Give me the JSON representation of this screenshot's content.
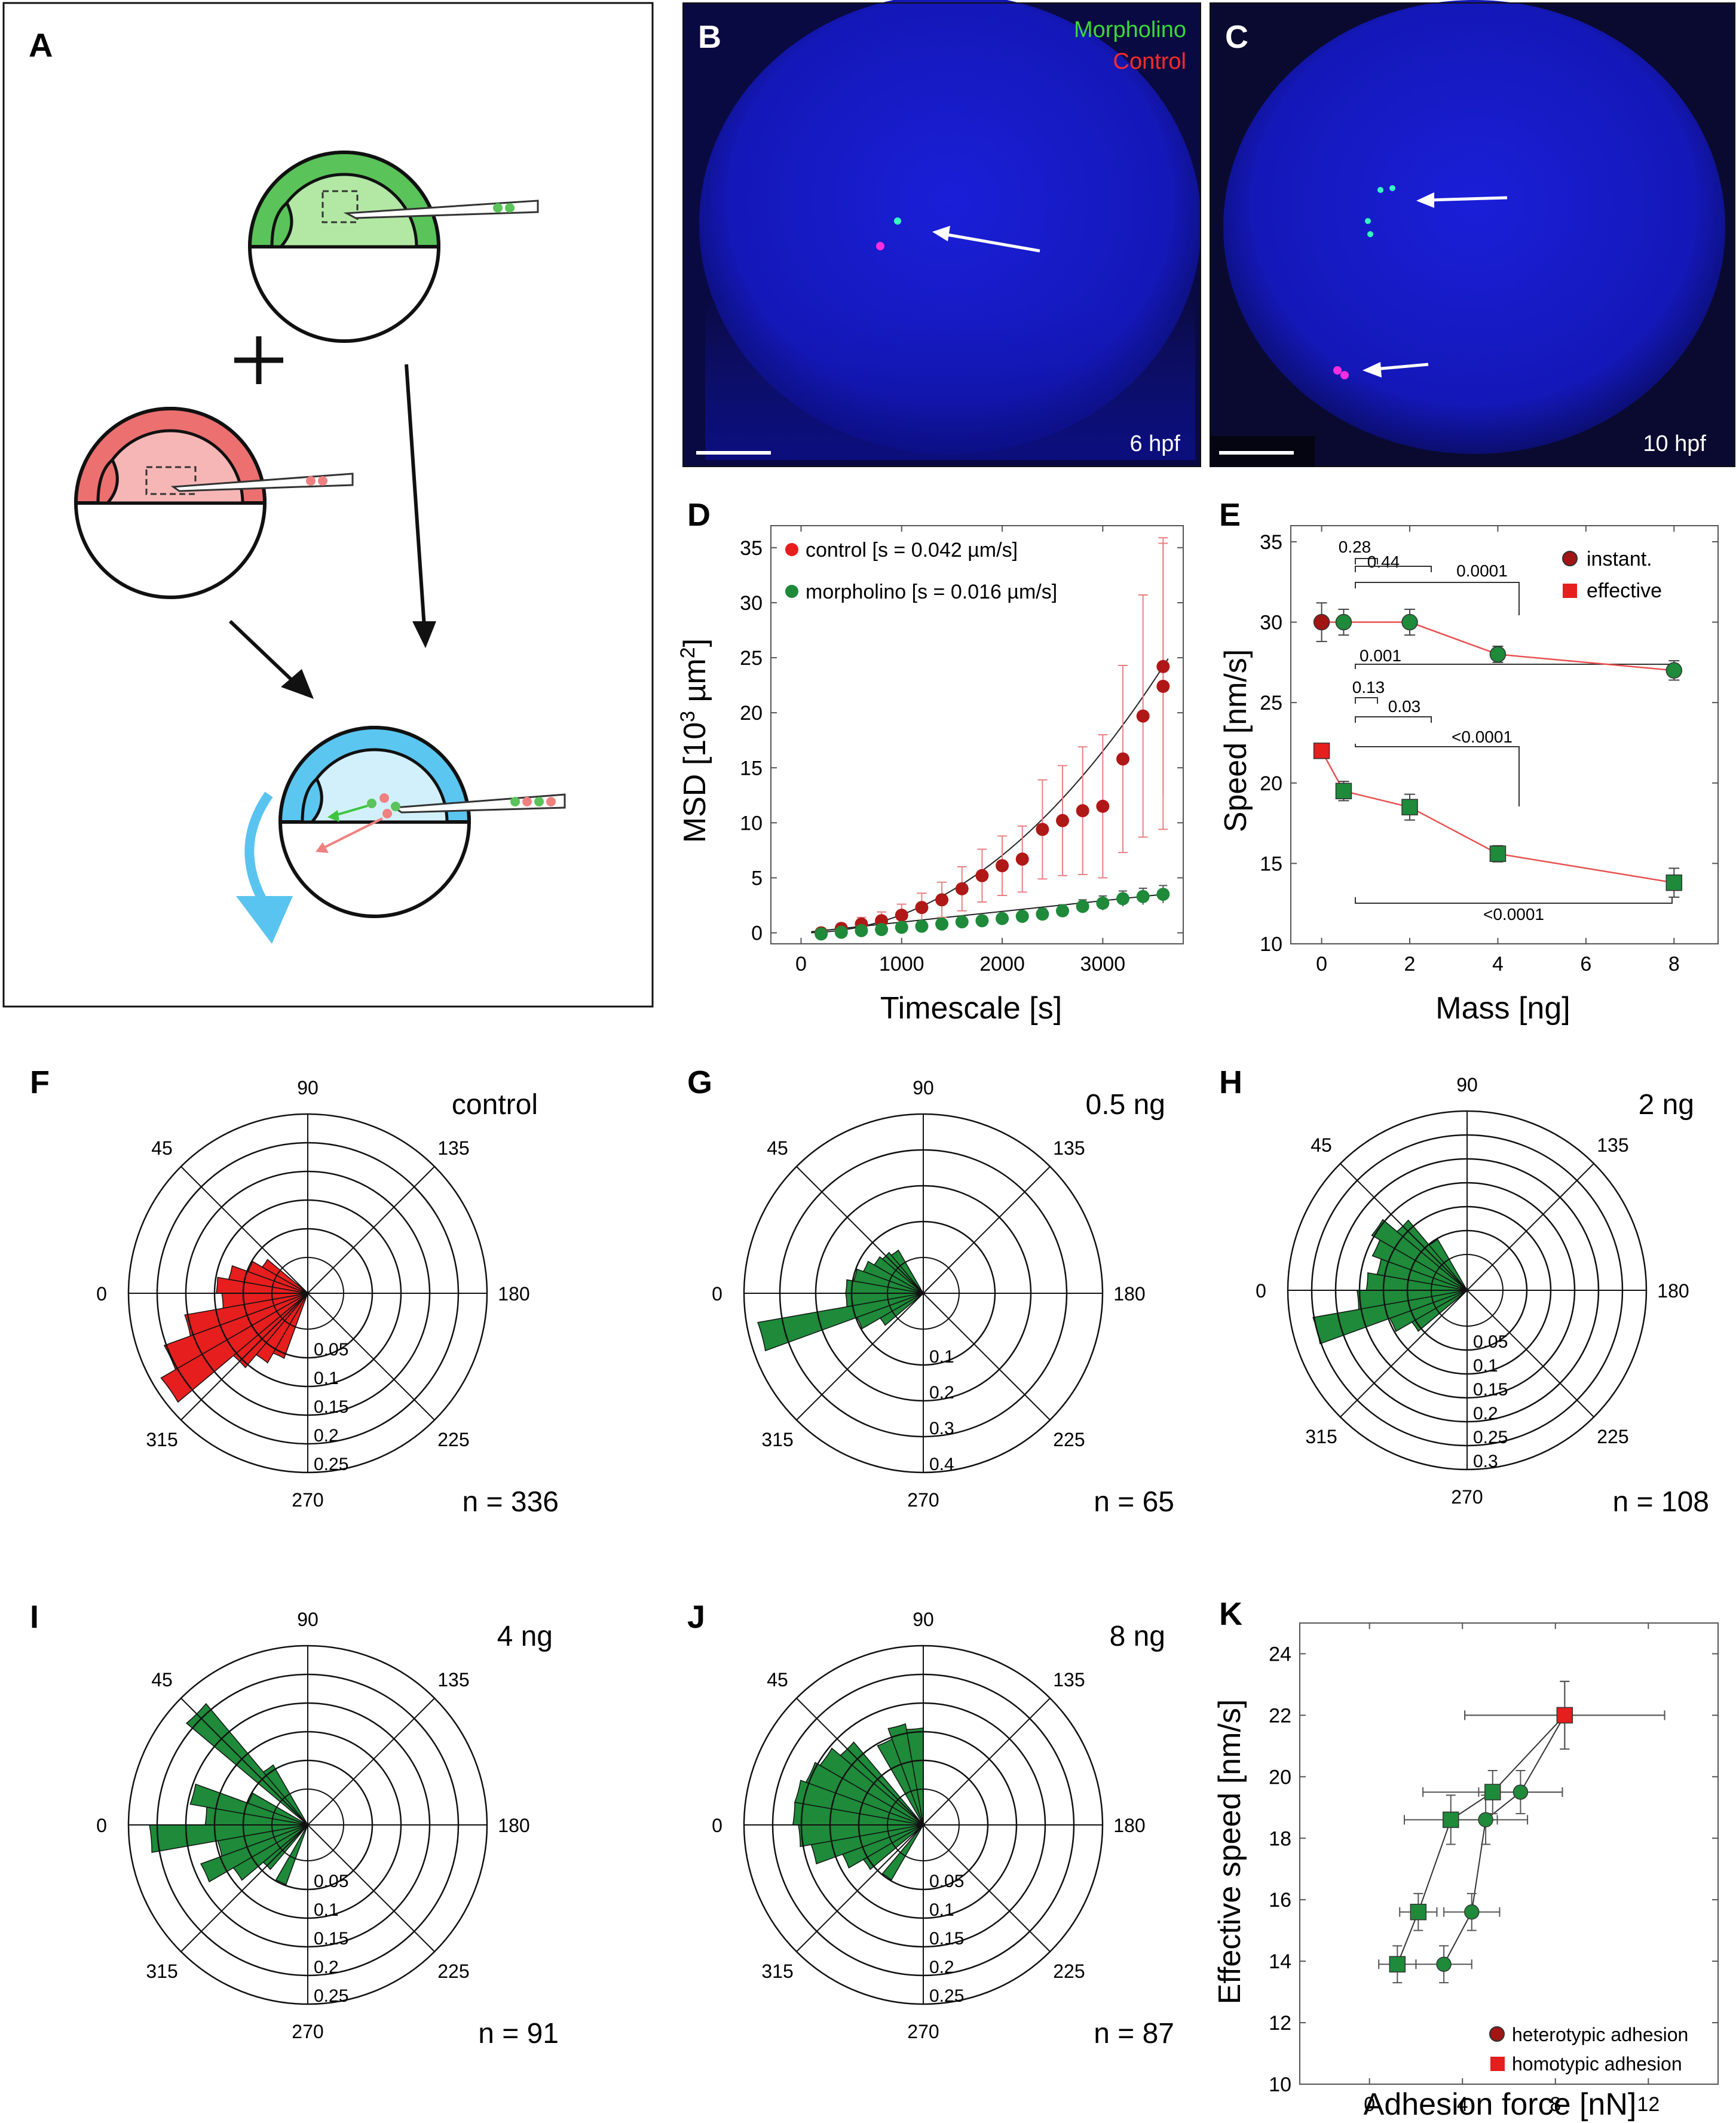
{
  "panel_letters": [
    "A",
    "B",
    "C",
    "D",
    "E",
    "F",
    "G",
    "H",
    "I",
    "J",
    "K"
  ],
  "colors": {
    "green": "#1e8a3a",
    "green_fill": "#b2e8a4",
    "red": "#e61e1e",
    "red_dark": "#a11515",
    "pink": "#f4a9a9",
    "blue_light": "#cfeefb",
    "blue": "#59c4ef",
    "micro_bg": "#0a0a42"
  },
  "panel_A": {
    "title": "A",
    "icons": [
      "green-embryo-icon",
      "red-embryo-icon",
      "mixed-embryo-icon",
      "plus-icon",
      "arrow-icon"
    ]
  },
  "panel_B": {
    "title": "B",
    "legend_morpholino": "Morpholino",
    "legend_control": "Control",
    "timepoint": "6 hpf",
    "legend_colors": {
      "morpholino": "#39d939",
      "control": "#ff2a2a"
    }
  },
  "panel_C": {
    "title": "C",
    "timepoint": "10 hpf"
  },
  "chart_data": [
    {
      "id": "D",
      "type": "scatter",
      "title": "",
      "xlabel": "Timescale [s]",
      "ylabel_main": "MSD [10",
      "ylabel_sup": "3",
      "ylabel_unit": " µm",
      "ylabel_sup2": "2",
      "ylabel_end": "]",
      "xlim": [
        -300,
        3800
      ],
      "ylim": [
        -1,
        37
      ],
      "xticks": [
        0,
        1000,
        2000,
        3000
      ],
      "yticks": [
        0,
        5,
        10,
        15,
        20,
        25,
        30,
        35
      ],
      "legend_position": "top-left",
      "series": [
        {
          "name": "control [s = 0.042 µm/s]",
          "color": "#b01818",
          "legend_color": "#e61e1e",
          "x": [
            200,
            400,
            600,
            800,
            1000,
            1200,
            1400,
            1600,
            1800,
            2000,
            2200,
            2400,
            2600,
            2800,
            3000,
            3200,
            3400,
            3600
          ],
          "y": [
            0,
            0.4,
            0.8,
            1.1,
            1.6,
            2.3,
            3.0,
            4.0,
            5.2,
            6.1,
            6.7,
            9.4,
            10.2,
            11.1,
            11.5,
            15.8,
            19.7,
            22.4
          ],
          "err": [
            0.3,
            0.4,
            0.6,
            0.8,
            1.0,
            1.3,
            1.6,
            2.0,
            2.4,
            2.7,
            3.0,
            4.5,
            5.0,
            5.8,
            6.5,
            8.5,
            11,
            13
          ]
        },
        {
          "name": "morpholino [s = 0.016 µm/s]",
          "color": "#1e8a3a",
          "legend_color": "#1e8a3a",
          "x": [
            200,
            400,
            600,
            800,
            1000,
            1200,
            1400,
            1600,
            1800,
            2000,
            2200,
            2400,
            2600,
            2800,
            3000,
            3200,
            3400,
            3600
          ],
          "y": [
            -0.1,
            0.05,
            0.2,
            0.3,
            0.5,
            0.6,
            0.8,
            1.0,
            1.1,
            1.3,
            1.5,
            1.7,
            2.0,
            2.4,
            2.7,
            3.1,
            3.3,
            3.5
          ],
          "err": [
            0.1,
            0.1,
            0.15,
            0.2,
            0.2,
            0.25,
            0.3,
            0.3,
            0.35,
            0.4,
            0.4,
            0.5,
            0.55,
            0.6,
            0.65,
            0.7,
            0.75,
            0.8
          ]
        }
      ],
      "extra_point": {
        "x": 3600,
        "y": 24.2,
        "err": 11.7
      }
    },
    {
      "id": "E",
      "type": "line",
      "title": "",
      "xlabel": "Mass [ng]",
      "ylabel": "Speed [nm/s]",
      "xlim": [
        -0.7,
        9.0
      ],
      "ylim": [
        10,
        36
      ],
      "xticks": [
        0,
        2,
        4,
        6,
        8
      ],
      "yticks": [
        10,
        15,
        20,
        25,
        30,
        35
      ],
      "legend_position": "top-right",
      "legend": [
        {
          "label": "instant.",
          "color": "#a11515",
          "marker": "circle"
        },
        {
          "label": "effective",
          "color": "#e61e1e",
          "marker": "square"
        }
      ],
      "series": [
        {
          "name": "instant.",
          "x": [
            0,
            0.5,
            2,
            4,
            8
          ],
          "y": [
            30,
            30,
            30,
            28,
            27
          ],
          "err": [
            1.2,
            0.8,
            0.8,
            0.5,
            0.6
          ]
        },
        {
          "name": "effective",
          "x": [
            0,
            0.5,
            2,
            4,
            8
          ],
          "y": [
            22,
            19.5,
            18.5,
            15.6,
            13.8
          ],
          "err": [
            0.4,
            0.6,
            0.8,
            0.5,
            0.9
          ]
        }
      ],
      "annotations": [
        "0.28",
        "0.44",
        "0.0001",
        "0.001",
        "0.13",
        "0.03",
        "<0.0001",
        "<0.0001"
      ]
    },
    {
      "id": "K",
      "type": "scatter",
      "title": "",
      "xlabel": "Adhesion force [nN]",
      "ylabel": "Effective speed [nm/s]",
      "xlim": [
        -3,
        15
      ],
      "ylim": [
        10,
        25
      ],
      "xticks": [
        0,
        4,
        8,
        12
      ],
      "yticks": [
        10,
        12,
        14,
        16,
        18,
        20,
        22,
        24
      ],
      "legend_position": "bottom-right",
      "legend": [
        {
          "label": "heterotypic adhesion",
          "color": "#a11515",
          "marker": "circle"
        },
        {
          "label": "homotypic adhesion",
          "color": "#e61e1e",
          "marker": "square"
        }
      ],
      "series": [
        {
          "name": "heterotypic adhesion",
          "marker": "circle",
          "x": [
            8.4,
            6.5,
            5,
            4.4,
            3.2
          ],
          "y": [
            22,
            19.5,
            18.6,
            15.6,
            13.9
          ],
          "xerr": [
            4.3,
            1.8,
            1.8,
            1.2,
            1.2
          ],
          "yerr": [
            1.1,
            0.7,
            0.8,
            0.6,
            0.6
          ]
        },
        {
          "name": "homotypic adhesion",
          "marker": "square",
          "x": [
            8.4,
            5.3,
            3.5,
            2.1,
            1.2
          ],
          "y": [
            22,
            19.5,
            18.6,
            15.6,
            13.9
          ],
          "xerr": [
            4.3,
            3.0,
            2.0,
            0.8,
            0.8
          ],
          "yerr": [
            1.1,
            0.7,
            0.8,
            0.6,
            0.6
          ]
        }
      ]
    }
  ],
  "rose_plots": [
    {
      "id": "F",
      "label": "control",
      "n_label": "n = 336",
      "color": "#e61e1e",
      "rmax": 0.25,
      "rings": [
        "0.05",
        "0.1",
        "0.15",
        "0.2",
        "0.25"
      ],
      "bins": [
        [
          -5,
          0.09
        ],
        [
          -15,
          0.16
        ],
        [
          -25,
          0.21
        ],
        [
          -35,
          0.24
        ],
        [
          -45,
          0.11
        ],
        [
          -55,
          0.08
        ],
        [
          -65,
          0.06
        ],
        [
          5,
          0.1
        ],
        [
          15,
          0.08
        ],
        [
          25,
          0.05
        ],
        [
          35,
          0.03
        ]
      ]
    },
    {
      "id": "G",
      "label": "0.5 ng",
      "n_label": "n = 65",
      "color": "#1e8a3a",
      "rmax": 0.4,
      "rings": [
        "0.1",
        "0.2",
        "0.3",
        "0.4"
      ],
      "bins": [
        [
          -5,
          0.12
        ],
        [
          -15,
          0.38
        ],
        [
          -25,
          0.1
        ],
        [
          -35,
          0.04
        ],
        [
          5,
          0.12
        ],
        [
          15,
          0.1
        ],
        [
          25,
          0.08
        ],
        [
          35,
          0.06
        ],
        [
          45,
          0.05
        ],
        [
          55,
          0.04
        ]
      ]
    },
    {
      "id": "H",
      "label": "2 ng",
      "n_label": "n = 108",
      "color": "#1e8a3a",
      "rmax": 0.3,
      "rings": [
        "0.05",
        "0.1",
        "0.15",
        "0.2",
        "0.25",
        "0.3"
      ],
      "bins": [
        [
          -5,
          0.16
        ],
        [
          -15,
          0.26
        ],
        [
          -25,
          0.1
        ],
        [
          -35,
          0.06
        ],
        [
          5,
          0.14
        ],
        [
          15,
          0.12
        ],
        [
          25,
          0.14
        ],
        [
          35,
          0.16
        ],
        [
          45,
          0.12
        ],
        [
          55,
          0.05
        ]
      ]
    },
    {
      "id": "I",
      "label": "4 ng",
      "n_label": "n = 91",
      "color": "#1e8a3a",
      "rmax": 0.25,
      "rings": [
        "0.05",
        "0.1",
        "0.15",
        "0.2",
        "0.25"
      ],
      "bins": [
        [
          -5,
          0.22
        ],
        [
          -15,
          0.1
        ],
        [
          -25,
          0.14
        ],
        [
          -35,
          0.09
        ],
        [
          -45,
          0.04
        ],
        [
          -65,
          0.05
        ],
        [
          5,
          0.12
        ],
        [
          15,
          0.15
        ],
        [
          25,
          0.05
        ],
        [
          45,
          0.22
        ],
        [
          55,
          0.06
        ]
      ]
    },
    {
      "id": "J",
      "label": "8 ng",
      "n_label": "n = 87",
      "color": "#1e8a3a",
      "rmax": 0.25,
      "rings": [
        "0.05",
        "0.1",
        "0.15",
        "0.2",
        "0.25"
      ],
      "bins": [
        [
          -5,
          0.16
        ],
        [
          -15,
          0.14
        ],
        [
          -25,
          0.09
        ],
        [
          -35,
          0.06
        ],
        [
          -55,
          0.05
        ],
        [
          5,
          0.17
        ],
        [
          15,
          0.17
        ],
        [
          25,
          0.16
        ],
        [
          35,
          0.15
        ],
        [
          45,
          0.13
        ],
        [
          65,
          0.1
        ],
        [
          75,
          0.12
        ],
        [
          85,
          0.11
        ]
      ]
    }
  ],
  "rose_angle_labels": [
    "90",
    "135",
    "180",
    "225",
    "270",
    "315",
    "0",
    "45"
  ]
}
